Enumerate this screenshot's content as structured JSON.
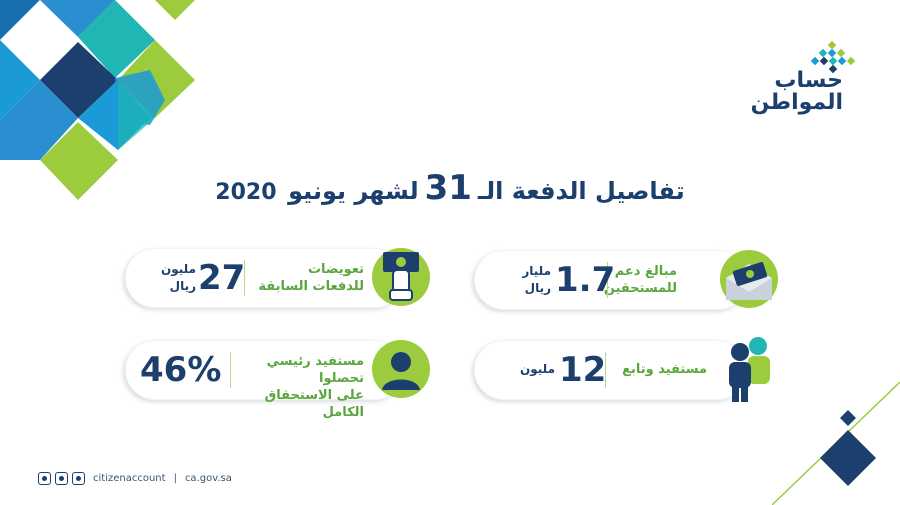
{
  "logo": {
    "line1": "حساب",
    "line2": "المواطن"
  },
  "headline": {
    "text1": "تفاصيل الدفعة الـ",
    "number": "31",
    "text2": "لشهر يونيو",
    "year": "2020"
  },
  "cards": [
    {
      "id": "support",
      "label_line1": "مبالغ دعم",
      "label_line2": "للمستحقين",
      "value": "1.7",
      "unit_line1": "مليار",
      "unit_line2": "ريال",
      "icon": "money-envelope-icon"
    },
    {
      "id": "compensation",
      "label_line1": "تعويضات",
      "label_line2": "للدفعات السابقة",
      "value": "27",
      "unit_line1": "مليون",
      "unit_line2": "ريال",
      "icon": "hand-banknote-icon"
    },
    {
      "id": "beneficiaries",
      "label_line1": "مستفيد وتابع",
      "label_line2": "",
      "value": "12",
      "unit_line1": "مليون",
      "unit_line2": "",
      "icon": "people-group-icon"
    },
    {
      "id": "full-entitlement",
      "label_line1": "مستفيد رئيسي تحصلوا",
      "label_line2": "على الاستحقاق الكامل",
      "value": "46%",
      "unit_line1": "",
      "unit_line2": "",
      "icon": "person-icon"
    }
  ],
  "footer": {
    "handle": "citizenaccount",
    "separator": "|",
    "site": "ca.gov.sa",
    "icons": [
      "twitter-icon",
      "instagram-icon",
      "youtube-icon"
    ]
  },
  "colors": {
    "navy": "#1c3f6e",
    "green": "#5aa63c",
    "lime": "#9ccc3d",
    "blue": "#1a9ad6",
    "teal": "#1fb6b3"
  }
}
